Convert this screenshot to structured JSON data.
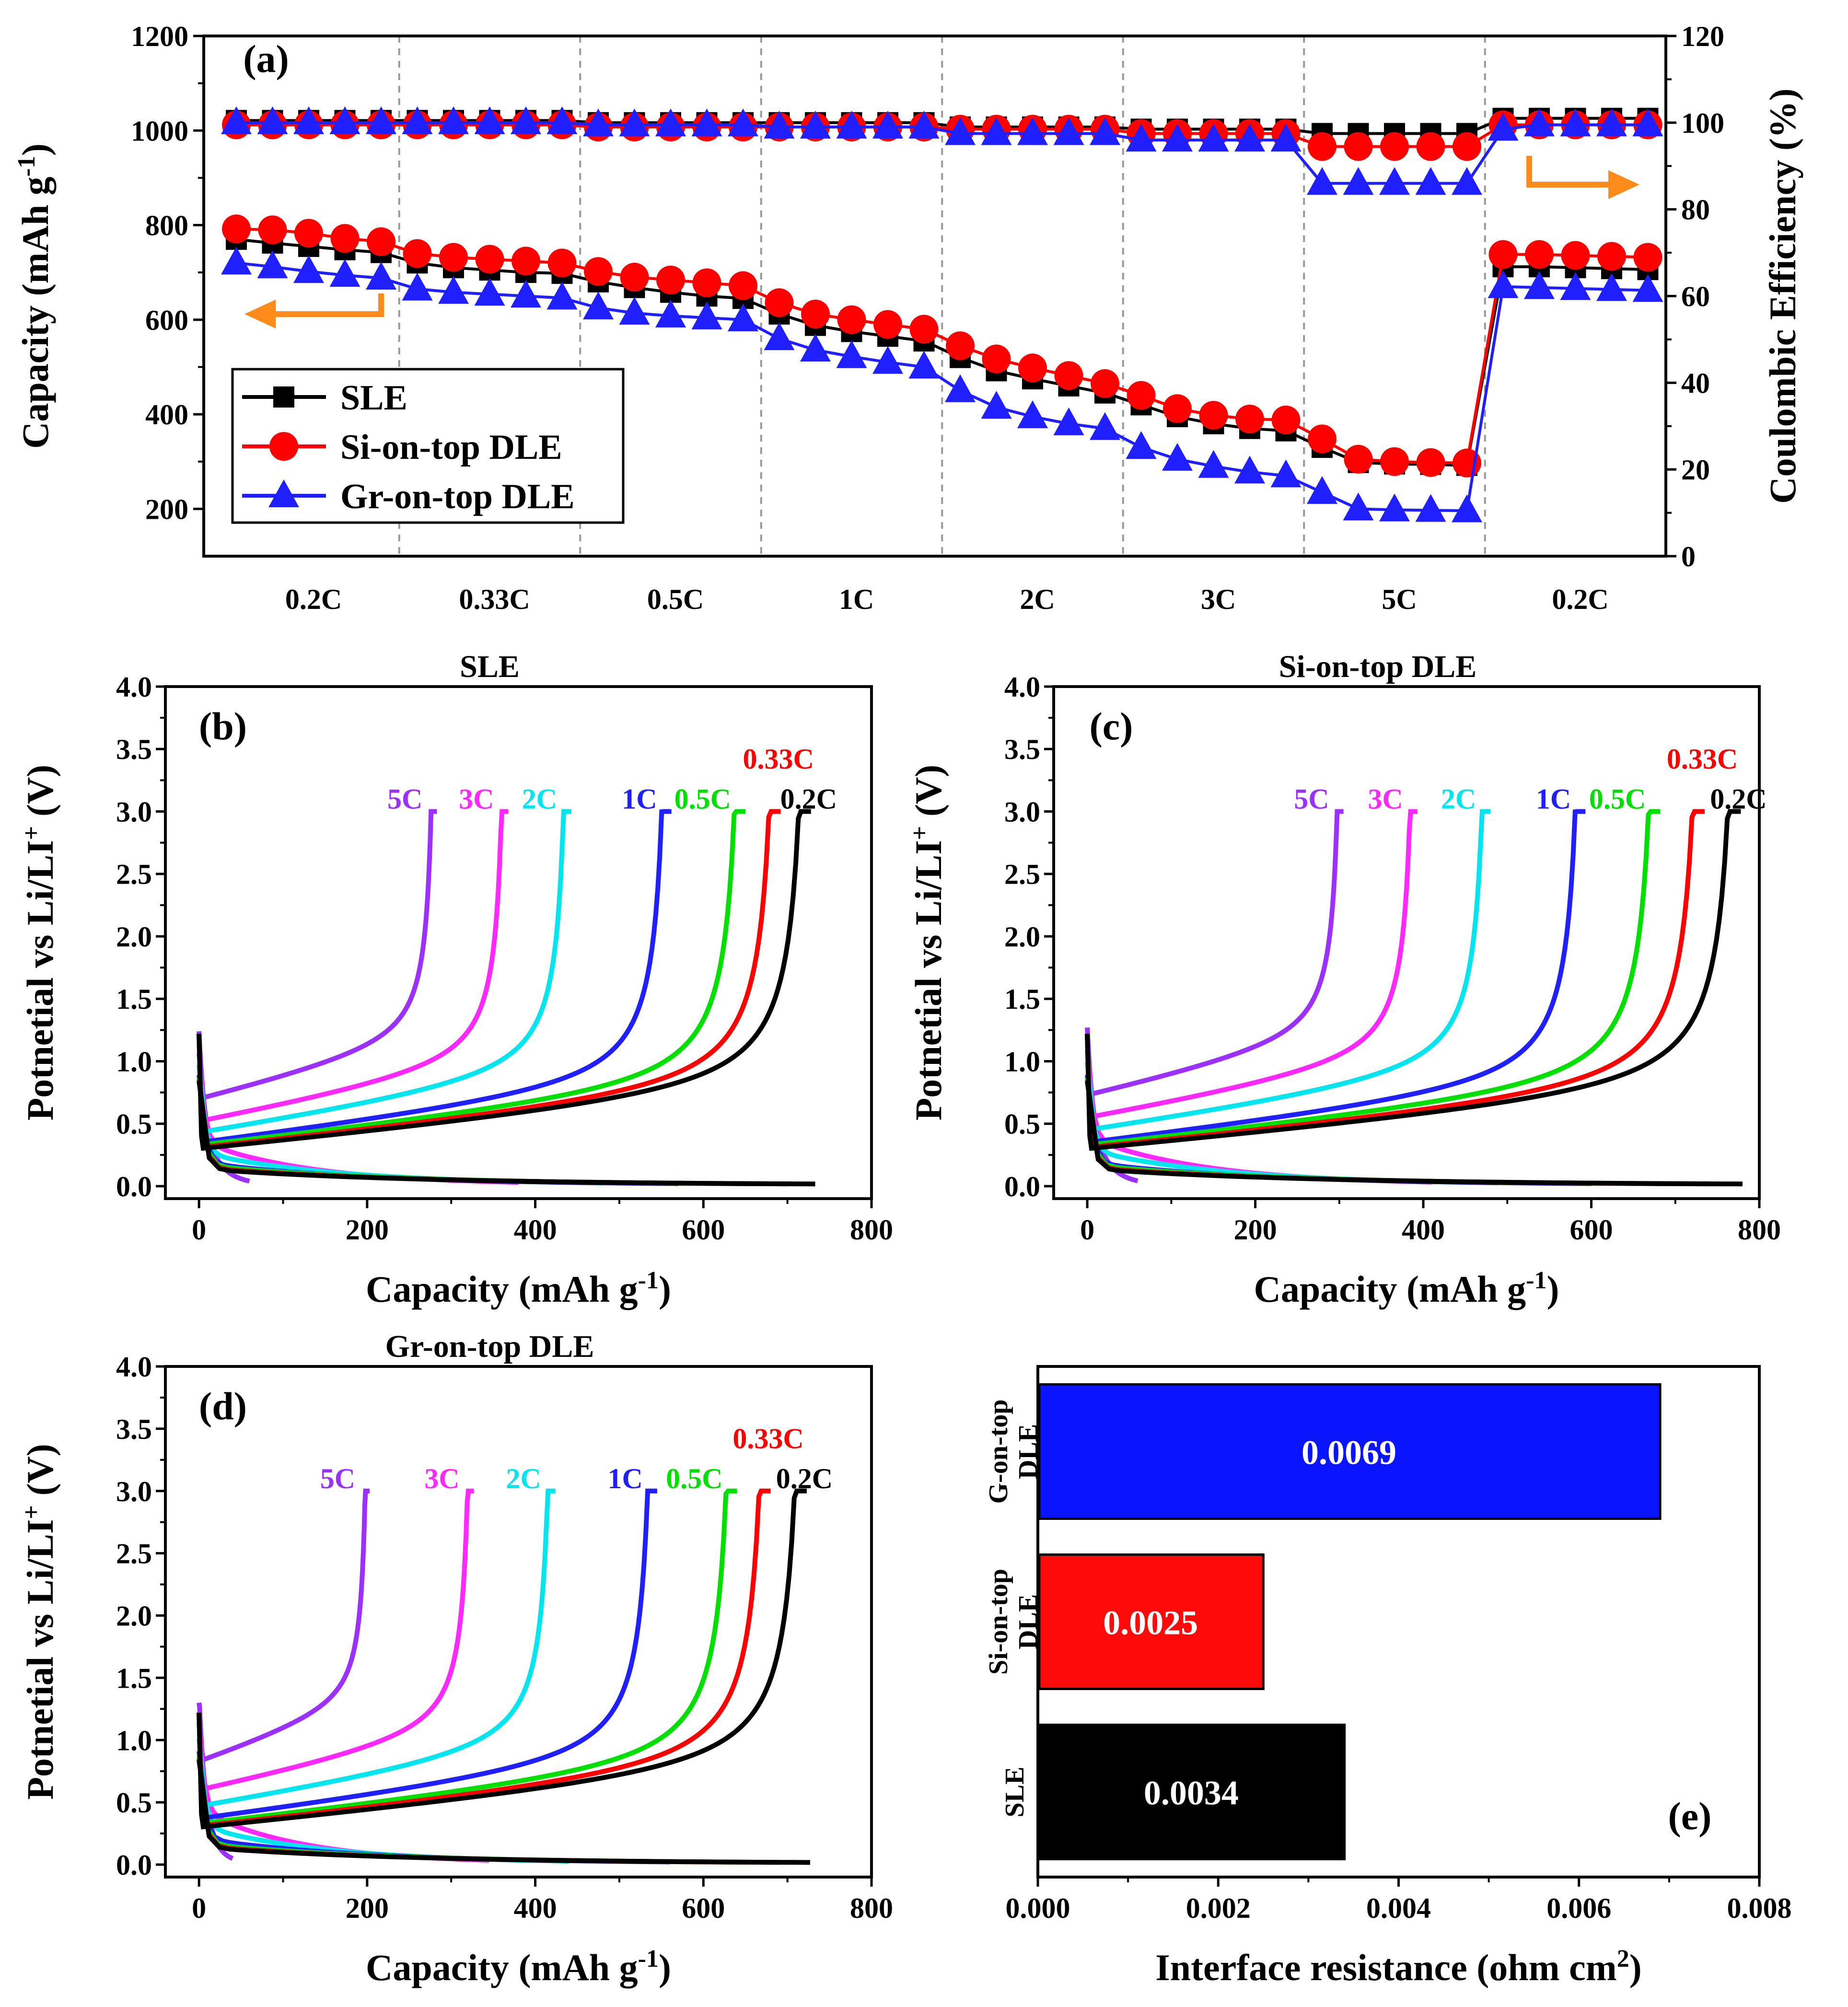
{
  "chart_data": [
    {
      "id": "a",
      "type": "line",
      "panel_label": "(a)",
      "ylabel_left": "Capacity (mAh g",
      "ylabel_left_sup": "-1",
      "ylabel_left_end": ")",
      "ylabel_right": "Coulombic Efficiency (%)",
      "ylim_left": [
        100,
        1200
      ],
      "yticks_left": [
        "200",
        "400",
        "600",
        "800",
        "1000",
        "1200"
      ],
      "ylim_right": [
        0,
        120
      ],
      "yticks_right": [
        "0",
        "20",
        "40",
        "60",
        "80",
        "100",
        "120"
      ],
      "rate_labels": [
        "0.2C",
        "0.33C",
        "0.5C",
        "1C",
        "2C",
        "3C",
        "5C",
        "0.2C"
      ],
      "legend": [
        "SLE",
        "Si-on-top DLE",
        "Gr-on-top DLE"
      ],
      "colors": [
        "#000000",
        "#ff0000",
        "#1f1fff"
      ],
      "arrow_color": "#ff8c1a",
      "series_capacity": [
        {
          "name": "SLE",
          "values": [
            770,
            762,
            755,
            748,
            742,
            720,
            710,
            705,
            700,
            698,
            680,
            668,
            658,
            650,
            645,
            612,
            588,
            575,
            565,
            555,
            520,
            492,
            475,
            460,
            445,
            420,
            395,
            380,
            370,
            365,
            330,
            298,
            295,
            294,
            292,
            712,
            712,
            710,
            708,
            706
          ]
        },
        {
          "name": "Si-on-top DLE",
          "values": [
            792,
            790,
            783,
            772,
            765,
            740,
            732,
            728,
            724,
            720,
            702,
            690,
            684,
            678,
            672,
            636,
            612,
            600,
            590,
            580,
            545,
            517,
            498,
            482,
            465,
            440,
            412,
            398,
            390,
            388,
            348,
            305,
            300,
            298,
            297,
            738,
            738,
            736,
            734,
            732
          ]
        },
        {
          "name": "Gr-on-top DLE",
          "values": [
            720,
            712,
            702,
            694,
            688,
            665,
            658,
            654,
            650,
            646,
            625,
            614,
            608,
            604,
            600,
            560,
            536,
            522,
            510,
            500,
            450,
            415,
            395,
            380,
            370,
            330,
            305,
            290,
            278,
            270,
            235,
            200,
            198,
            197,
            196,
            670,
            668,
            666,
            664,
            662
          ]
        }
      ],
      "series_ce": [
        {
          "name": "SLE",
          "values": [
            100.5,
            100.5,
            100.5,
            100.5,
            100.5,
            100.5,
            100.5,
            100.5,
            100.5,
            100.5,
            100,
            100,
            100,
            100,
            100,
            100,
            100,
            100,
            100,
            100,
            99,
            99,
            99,
            99,
            99,
            98.5,
            98.5,
            98.5,
            98.5,
            98.5,
            97.5,
            97.5,
            97.5,
            97.5,
            97.5,
            101,
            101,
            101,
            101,
            101
          ]
        },
        {
          "name": "Si-on-top DLE",
          "values": [
            99.5,
            99.5,
            99.5,
            99.5,
            99.5,
            99.5,
            99.5,
            99.5,
            99.5,
            99.5,
            99,
            99,
            99,
            99,
            99,
            99,
            99,
            99,
            99,
            99,
            98.5,
            98.5,
            98.5,
            98.5,
            98.5,
            97.5,
            97.5,
            97.5,
            97.5,
            97.5,
            94.5,
            94.5,
            94.5,
            94.5,
            94.5,
            99.5,
            99.5,
            99.5,
            99.5,
            99.5
          ]
        },
        {
          "name": "Gr-on-top DLE",
          "values": [
            100,
            100,
            100,
            100,
            100,
            100,
            100,
            100,
            100,
            100,
            99.5,
            99.5,
            99.5,
            99.5,
            99.5,
            99,
            99,
            99,
            99,
            99,
            97.5,
            97.5,
            97.5,
            97.5,
            97.5,
            96,
            96,
            96,
            96,
            96,
            86,
            86,
            86,
            86,
            86,
            98.5,
            99.5,
            99.5,
            99.5,
            99.5
          ]
        }
      ]
    },
    {
      "id": "b",
      "type": "line",
      "panel_label": "(b)",
      "title": "SLE",
      "xlabel": "Capacity (mAh g",
      "xlabel_sup": "-1",
      "xlabel_end": ")",
      "ylabel": "Potnetial vs Li/LI",
      "ylabel_sup": "+",
      "ylabel_end": " (V)",
      "xlim": [
        -40,
        800
      ],
      "ylim": [
        -0.1,
        4.0
      ],
      "xticks": [
        "0",
        "200",
        "400",
        "600",
        "800"
      ],
      "yticks": [
        "0.0",
        "0.5",
        "1.0",
        "1.5",
        "2.0",
        "2.5",
        "3.0",
        "3.5",
        "4.0"
      ],
      "curves": [
        {
          "rate": "0.2C",
          "color": "#000000",
          "charge_cap": 728,
          "discharge_cap": 733,
          "plateau": 0.25
        },
        {
          "rate": "0.33C",
          "color": "#ff0000",
          "charge_cap": 692,
          "discharge_cap": 700,
          "plateau": 0.26
        },
        {
          "rate": "0.5C",
          "color": "#00e000",
          "charge_cap": 650,
          "discharge_cap": 655,
          "plateau": 0.28
        },
        {
          "rate": "1C",
          "color": "#1f1fff",
          "charge_cap": 562,
          "discharge_cap": 570,
          "plateau": 0.3
        },
        {
          "rate": "2C",
          "color": "#00e5ee",
          "charge_cap": 443,
          "discharge_cap": 480,
          "plateau": 0.38
        },
        {
          "rate": "3C",
          "color": "#ff28ff",
          "charge_cap": 368,
          "discharge_cap": 380,
          "plateau": 0.47
        },
        {
          "rate": "5C",
          "color": "#9b30ff",
          "charge_cap": 283,
          "discharge_cap": 60,
          "plateau": 0.65
        }
      ]
    },
    {
      "id": "c",
      "type": "line",
      "panel_label": "(c)",
      "title": "Si-on-top DLE",
      "xlabel": "Capacity (mAh g",
      "xlabel_sup": "-1",
      "xlabel_end": ")",
      "ylabel": "Potnetial vs Li/LI",
      "ylabel_sup": "+",
      "ylabel_end": " (V)",
      "xlim": [
        -40,
        800
      ],
      "ylim": [
        -0.1,
        4.0
      ],
      "xticks": [
        "0",
        "200",
        "400",
        "600",
        "800"
      ],
      "yticks": [
        "0.0",
        "0.5",
        "1.0",
        "1.5",
        "2.0",
        "2.5",
        "3.0",
        "3.5",
        "4.0"
      ],
      "curves": [
        {
          "rate": "0.2C",
          "color": "#000000",
          "charge_cap": 778,
          "discharge_cap": 780,
          "plateau": 0.25
        },
        {
          "rate": "0.33C",
          "color": "#ff0000",
          "charge_cap": 735,
          "discharge_cap": 740,
          "plateau": 0.26
        },
        {
          "rate": "0.5C",
          "color": "#00e000",
          "charge_cap": 682,
          "discharge_cap": 690,
          "plateau": 0.28
        },
        {
          "rate": "1C",
          "color": "#1f1fff",
          "charge_cap": 593,
          "discharge_cap": 600,
          "plateau": 0.3
        },
        {
          "rate": "2C",
          "color": "#00e5ee",
          "charge_cap": 480,
          "discharge_cap": 490,
          "plateau": 0.4
        },
        {
          "rate": "3C",
          "color": "#ff28ff",
          "charge_cap": 393,
          "discharge_cap": 410,
          "plateau": 0.5
        },
        {
          "rate": "5C",
          "color": "#9b30ff",
          "charge_cap": 305,
          "discharge_cap": 60,
          "plateau": 0.68
        }
      ]
    },
    {
      "id": "d",
      "type": "line",
      "panel_label": "(d)",
      "title": "Gr-on-top DLE",
      "xlabel": "Capacity (mAh g",
      "xlabel_sup": "-1",
      "xlabel_end": ")",
      "ylabel": "Potnetial vs Li/LI",
      "ylabel_sup": "+",
      "ylabel_end": " (V)",
      "xlim": [
        -40,
        800
      ],
      "ylim": [
        -0.1,
        4.0
      ],
      "xticks": [
        "0",
        "200",
        "400",
        "600",
        "800"
      ],
      "yticks": [
        "0.0",
        "0.5",
        "1.0",
        "1.5",
        "2.0",
        "2.5",
        "3.0",
        "3.5",
        "4.0"
      ],
      "curves": [
        {
          "rate": "0.2C",
          "color": "#000000",
          "charge_cap": 723,
          "discharge_cap": 727,
          "plateau": 0.25
        },
        {
          "rate": "0.33C",
          "color": "#ff0000",
          "charge_cap": 680,
          "discharge_cap": 690,
          "plateau": 0.26
        },
        {
          "rate": "0.5C",
          "color": "#00e000",
          "charge_cap": 640,
          "discharge_cap": 650,
          "plateau": 0.28
        },
        {
          "rate": "1C",
          "color": "#1f1fff",
          "charge_cap": 545,
          "discharge_cap": 560,
          "plateau": 0.32
        },
        {
          "rate": "2C",
          "color": "#00e5ee",
          "charge_cap": 424,
          "discharge_cap": 440,
          "plateau": 0.42
        },
        {
          "rate": "3C",
          "color": "#ff28ff",
          "charge_cap": 327,
          "discharge_cap": 345,
          "plateau": 0.55
        },
        {
          "rate": "5C",
          "color": "#9b30ff",
          "charge_cap": 203,
          "discharge_cap": 40,
          "plateau": 0.78
        }
      ]
    },
    {
      "id": "e",
      "type": "bar",
      "orientation": "horizontal",
      "panel_label": "(e)",
      "xlabel": "Interface resistance (ohm cm",
      "xlabel_sup": "2",
      "xlabel_end": ")",
      "xlim": [
        0,
        0.008
      ],
      "xticks": [
        "0.000",
        "0.002",
        "0.004",
        "0.006",
        "0.008"
      ],
      "bars": [
        {
          "label_line1": "G-on-top",
          "label_line2": "DLE",
          "value": 0.0069,
          "value_label": "0.0069",
          "color": "#0a14ff"
        },
        {
          "label_line1": "Si-on-top",
          "label_line2": "DLE",
          "value": 0.0025,
          "value_label": "0.0025",
          "color": "#ff0a0a"
        },
        {
          "label_line1": "SLE",
          "label_line2": "",
          "value": 0.0034,
          "value_label": "0.0034",
          "color": "#000000"
        }
      ]
    }
  ]
}
